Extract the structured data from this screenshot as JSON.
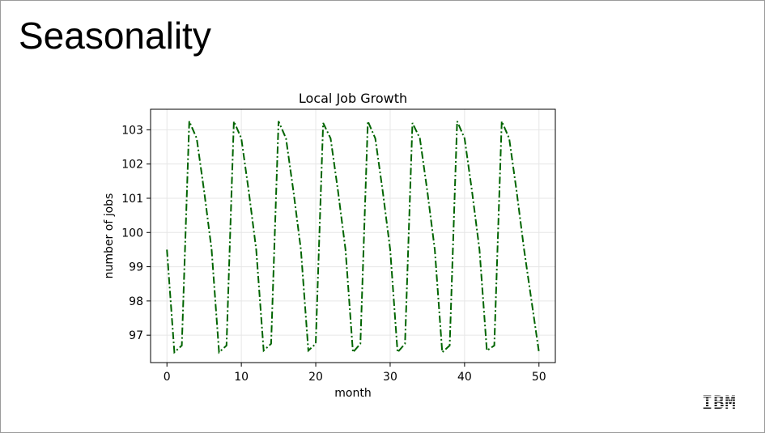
{
  "slide": {
    "title": "Seasonality",
    "logo_text": "IBM"
  },
  "chart_data": {
    "type": "line",
    "title": "Local Job Growth",
    "xlabel": "month",
    "ylabel": "number of jobs",
    "xlim": [
      -2.2,
      52.2
    ],
    "ylim": [
      96.2,
      103.6
    ],
    "xticks": [
      0,
      10,
      20,
      30,
      40,
      50
    ],
    "yticks": [
      97,
      98,
      99,
      100,
      101,
      102,
      103
    ],
    "grid": true,
    "line_color": "#006400",
    "line_style": "dash-dot",
    "series": [
      {
        "x": [
          0,
          1,
          2,
          3,
          4,
          5,
          6,
          7,
          8,
          9,
          10,
          11,
          12,
          13,
          14,
          15,
          16,
          17,
          18,
          19,
          20,
          21,
          22,
          23,
          24,
          25,
          26,
          27,
          28,
          29,
          30,
          31,
          32,
          33,
          34,
          35,
          36,
          37,
          38,
          39,
          40,
          41,
          42,
          43,
          44,
          45,
          46,
          47,
          48,
          49,
          50
        ],
        "values": [
          99.5,
          96.5,
          96.7,
          103.25,
          102.75,
          101.2,
          99.5,
          96.5,
          96.7,
          103.25,
          102.75,
          101.2,
          99.5,
          96.55,
          96.75,
          103.25,
          102.75,
          101.2,
          99.5,
          96.55,
          96.75,
          103.2,
          102.75,
          101.2,
          99.5,
          96.5,
          96.75,
          103.25,
          102.75,
          101.2,
          99.5,
          96.5,
          96.75,
          103.2,
          102.75,
          101.2,
          99.5,
          96.5,
          96.7,
          103.25,
          102.75,
          101.2,
          99.5,
          96.55,
          96.7,
          103.25,
          102.75,
          101.2,
          99.5,
          98.0,
          96.5
        ]
      }
    ]
  }
}
